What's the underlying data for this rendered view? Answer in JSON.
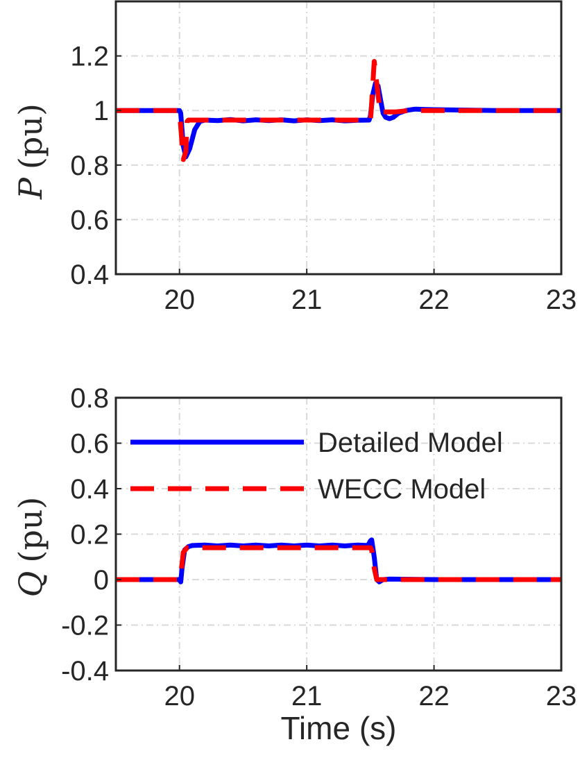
{
  "colors": {
    "detailed": "#0000ff",
    "wecc": "#ff0000",
    "grid": "#d9d9d9",
    "axis": "#262626"
  },
  "chart_data": [
    {
      "type": "line",
      "title": "",
      "xlabel": "",
      "ylabel": {
        "symbol": "P",
        "unit": "(pu)"
      },
      "xlim": [
        19.5,
        23
      ],
      "ylim": [
        0.4,
        1.4
      ],
      "xticks": [
        "20",
        "21",
        "22",
        "23"
      ],
      "yticks": [
        "0.4",
        "0.6",
        "0.8",
        "1",
        "1.2"
      ],
      "grid": true,
      "series": [
        {
          "name": "Detailed Model",
          "style": "solid",
          "x": [
            19.5,
            20.0,
            20.01,
            20.03,
            20.05,
            20.08,
            20.12,
            20.16,
            20.2,
            20.3,
            20.4,
            20.5,
            20.6,
            20.7,
            20.8,
            20.9,
            21.0,
            21.1,
            21.2,
            21.3,
            21.4,
            21.49,
            21.5,
            21.52,
            21.54,
            21.56,
            21.58,
            21.6,
            21.62,
            21.65,
            21.68,
            21.72,
            21.78,
            21.85,
            22.0,
            22.5,
            23.0
          ],
          "y": [
            1.0,
            1.0,
            0.99,
            0.87,
            0.83,
            0.86,
            0.93,
            0.96,
            0.965,
            0.963,
            0.967,
            0.962,
            0.966,
            0.963,
            0.966,
            0.962,
            0.966,
            0.963,
            0.966,
            0.962,
            0.964,
            0.965,
            0.98,
            1.06,
            1.1,
            1.09,
            1.04,
            0.99,
            0.975,
            0.97,
            0.975,
            0.99,
            1.0,
            1.005,
            1.003,
            1.0,
            1.0
          ]
        },
        {
          "name": "WECC Model",
          "style": "dashed",
          "x": [
            19.5,
            20.0,
            20.005,
            20.03,
            20.05,
            20.06,
            20.07,
            21.5,
            21.505,
            21.53,
            21.55,
            21.57,
            21.58,
            21.6,
            21.7,
            21.8,
            22.0,
            23.0
          ],
          "y": [
            1.0,
            1.0,
            0.97,
            0.82,
            0.85,
            0.96,
            0.965,
            0.965,
            0.99,
            1.18,
            1.1,
            1.02,
            0.99,
            0.995,
            0.995,
            1.0,
            1.0,
            1.0
          ]
        }
      ]
    },
    {
      "type": "line",
      "title": "",
      "xlabel": "Time (s)",
      "ylabel": {
        "symbol": "Q",
        "unit": "(pu)"
      },
      "xlim": [
        19.5,
        23
      ],
      "ylim": [
        -0.4,
        0.8
      ],
      "xticks": [
        "20",
        "21",
        "22",
        "23"
      ],
      "yticks": [
        "-0.4",
        "-0.2",
        "0",
        "0.2",
        "0.4",
        "0.6",
        "0.8"
      ],
      "grid": true,
      "legend": {
        "placement": "top-right",
        "entries": [
          "Detailed Model",
          "WECC Model"
        ]
      },
      "series": [
        {
          "name": "Detailed Model",
          "style": "solid",
          "x": [
            19.5,
            20.0,
            20.01,
            20.02,
            20.04,
            20.07,
            20.1,
            20.2,
            20.3,
            20.4,
            20.5,
            20.6,
            20.7,
            20.8,
            20.9,
            21.0,
            21.1,
            21.2,
            21.3,
            21.4,
            21.48,
            21.5,
            21.51,
            21.53,
            21.55,
            21.57,
            21.6,
            21.65,
            22.0,
            23.0
          ],
          "y": [
            0.0,
            0.0,
            -0.01,
            0.05,
            0.13,
            0.145,
            0.15,
            0.152,
            0.148,
            0.152,
            0.148,
            0.152,
            0.148,
            0.152,
            0.148,
            0.152,
            0.148,
            0.152,
            0.148,
            0.152,
            0.15,
            0.17,
            0.175,
            0.1,
            0.0,
            -0.01,
            0.0,
            0.002,
            0.0,
            0.0
          ]
        },
        {
          "name": "WECC Model",
          "style": "dashed",
          "x": [
            19.5,
            20.0,
            20.01,
            20.03,
            20.06,
            21.5,
            21.51,
            21.53,
            21.55,
            21.6,
            23.0
          ],
          "y": [
            0.0,
            0.0,
            0.02,
            0.12,
            0.14,
            0.14,
            0.13,
            0.05,
            0.0,
            0.0,
            0.0
          ]
        }
      ]
    }
  ]
}
